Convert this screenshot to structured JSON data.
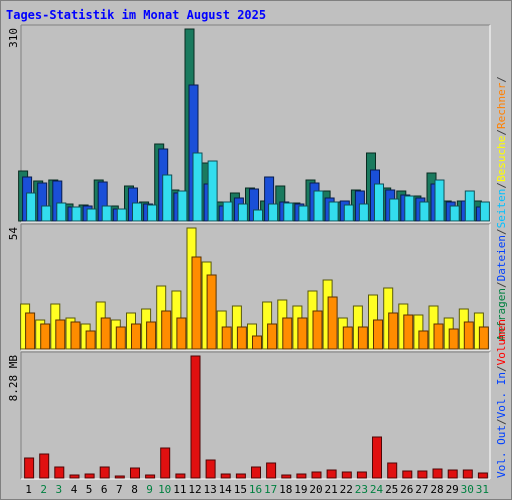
{
  "title": "Tages-Statistik im Monat August 2025",
  "right_legend": {
    "top": [
      {
        "text": "Anfragen",
        "color": "#008040"
      },
      {
        "text": "/",
        "color": "#404040"
      },
      {
        "text": "Dateien",
        "color": "#0040ff"
      },
      {
        "text": "/",
        "color": "#404040"
      },
      {
        "text": "Seiten",
        "color": "#00c0ff"
      },
      {
        "text": "/",
        "color": "#404040"
      },
      {
        "text": "Besuche",
        "color": "#ffff00"
      },
      {
        "text": "/",
        "color": "#404040"
      },
      {
        "text": "Rechner",
        "color": "#ff8000"
      },
      {
        "text": "/",
        "color": "#404040"
      }
    ],
    "bottom": [
      {
        "text": "Vol. Out",
        "color": "#0040ff"
      },
      {
        "text": "/",
        "color": "#404040"
      },
      {
        "text": "Vol. In",
        "color": "#0040ff"
      },
      {
        "text": "/",
        "color": "#404040"
      },
      {
        "text": "Volumen",
        "color": "#ff0000"
      }
    ]
  },
  "colors": {
    "anfragen": "#1a7a5e",
    "dateien": "#1a4fd8",
    "seiten": "#33ddee",
    "besuche": "#ffff22",
    "rechner": "#ff8c00",
    "volumen": "#e01010",
    "weekend": "#008040",
    "weekday": "#000000",
    "background": "#c0c0c0"
  },
  "chart_data": [
    {
      "type": "bar",
      "ylabel": "310",
      "ylim": [
        0,
        310
      ],
      "x": [
        "1",
        "2",
        "3",
        "4",
        "5",
        "6",
        "7",
        "8",
        "9",
        "10",
        "11",
        "12",
        "13",
        "14",
        "15",
        "16",
        "17",
        "18",
        "19",
        "20",
        "21",
        "22",
        "23",
        "24",
        "25",
        "26",
        "27",
        "28",
        "29",
        "30",
        "31"
      ],
      "series": [
        {
          "name": "Anfragen",
          "values": [
            81,
            64,
            67,
            27,
            26,
            66,
            24,
            56,
            31,
            124,
            50,
            310,
            94,
            31,
            45,
            54,
            32,
            56,
            29,
            66,
            49,
            31,
            50,
            109,
            54,
            48,
            41,
            77,
            32,
            32,
            32
          ]
        },
        {
          "name": "Dateien",
          "values": [
            71,
            62,
            64,
            23,
            24,
            63,
            20,
            54,
            28,
            117,
            45,
            220,
            60,
            24,
            37,
            52,
            71,
            30,
            28,
            62,
            37,
            32,
            48,
            82,
            50,
            42,
            37,
            59,
            30,
            32,
            23
          ]
        },
        {
          "name": "Seiten",
          "values": [
            45,
            24,
            29,
            23,
            19,
            24,
            19,
            29,
            26,
            75,
            48,
            110,
            97,
            30,
            28,
            17,
            28,
            29,
            25,
            49,
            30,
            26,
            28,
            59,
            36,
            40,
            31,
            66,
            25,
            48,
            30
          ]
        }
      ]
    },
    {
      "type": "bar",
      "ylabel": "54",
      "ylim": [
        0,
        54
      ],
      "x": [
        "1",
        "2",
        "3",
        "4",
        "5",
        "6",
        "7",
        "8",
        "9",
        "10",
        "11",
        "12",
        "13",
        "14",
        "15",
        "16",
        "17",
        "18",
        "19",
        "20",
        "21",
        "22",
        "23",
        "24",
        "25",
        "26",
        "27",
        "28",
        "29",
        "30",
        "31"
      ],
      "series": [
        {
          "name": "Besuche",
          "values": [
            20,
            13,
            20,
            14,
            11,
            21,
            13,
            16,
            18,
            28,
            26,
            54,
            39,
            17,
            19,
            11,
            21,
            22,
            19,
            26,
            31,
            14,
            19,
            24,
            27,
            20,
            15,
            19,
            14,
            18,
            16
          ]
        },
        {
          "name": "Rechner",
          "values": [
            16,
            11,
            13,
            12,
            8,
            14,
            10,
            11,
            12,
            17,
            14,
            41,
            33,
            10,
            10,
            6,
            11,
            14,
            14,
            17,
            23,
            10,
            10,
            13,
            16,
            15,
            8,
            11,
            9,
            12,
            10
          ]
        }
      ]
    },
    {
      "type": "bar",
      "ylabel": "8.28 MB",
      "ylim": [
        0,
        8.28
      ],
      "x": [
        "1",
        "2",
        "3",
        "4",
        "5",
        "6",
        "7",
        "8",
        "9",
        "10",
        "11",
        "12",
        "13",
        "14",
        "15",
        "16",
        "17",
        "18",
        "19",
        "20",
        "21",
        "22",
        "23",
        "24",
        "25",
        "26",
        "27",
        "28",
        "29",
        "30",
        "31"
      ],
      "series": [
        {
          "name": "Volumen",
          "values": [
            1.38,
            1.6,
            0.73,
            0.2,
            0.27,
            0.73,
            0.13,
            0.67,
            0.2,
            2.03,
            0.27,
            8.28,
            1.23,
            0.27,
            0.27,
            0.73,
            1.0,
            0.2,
            0.27,
            0.4,
            0.53,
            0.4,
            0.4,
            2.8,
            1.0,
            0.47,
            0.47,
            0.6,
            0.53,
            0.53,
            0.33
          ]
        }
      ]
    }
  ],
  "weekend_days": [
    "2",
    "3",
    "9",
    "10",
    "16",
    "17",
    "23",
    "24",
    "30",
    "31"
  ]
}
